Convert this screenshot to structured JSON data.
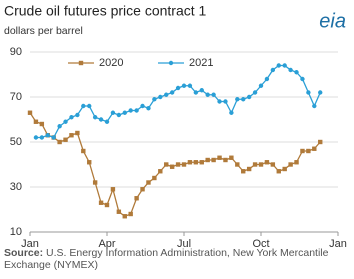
{
  "chart_data": {
    "type": "line",
    "title": "Crude oil futures price contract 1",
    "subtitle": "dollars per barrel",
    "logo": "eia",
    "source_label": "Source:",
    "source": "U.S. Energy Information Administration, New York Mercantile Exchange (NYMEX)",
    "x": [
      0,
      1,
      2,
      3,
      4,
      5,
      6,
      7,
      8,
      9,
      10,
      11,
      12,
      13,
      14,
      15,
      16,
      17,
      18,
      19,
      20,
      21,
      22,
      23,
      24,
      25,
      26,
      27,
      28,
      29,
      30,
      31,
      32,
      33,
      34,
      35,
      36,
      37,
      38,
      39,
      40,
      41,
      42,
      43,
      44,
      45,
      46,
      47,
      48,
      49
    ],
    "xlim": [
      0,
      52
    ],
    "xticks": [
      {
        "value": 0,
        "label": "Jan"
      },
      {
        "value": 13,
        "label": "Apr"
      },
      {
        "value": 26,
        "label": "Jul"
      },
      {
        "value": 39,
        "label": "Oct"
      },
      {
        "value": 52,
        "label": "Jan"
      }
    ],
    "ylim": [
      10,
      90
    ],
    "yticks": [
      10,
      30,
      50,
      70,
      90
    ],
    "grid": true,
    "legend": "top",
    "series": [
      {
        "name": "2020",
        "color": "#b07a3a",
        "marker": "square",
        "values": [
          63,
          59,
          58,
          53,
          52,
          50,
          51,
          53,
          54,
          46,
          41,
          32,
          23,
          22,
          29,
          19,
          17,
          18,
          25,
          29,
          32,
          34,
          37,
          40,
          39,
          40,
          40,
          41,
          41,
          41,
          42,
          42,
          43,
          42,
          43,
          40,
          37,
          38,
          40,
          40,
          41,
          40,
          37,
          38,
          40,
          41,
          46,
          46,
          47,
          50
        ]
      },
      {
        "name": "2021",
        "color": "#2a9fd6",
        "marker": "circle",
        "values": [
          null,
          52,
          52,
          53,
          52,
          57,
          59,
          61,
          62,
          66,
          66,
          61,
          60,
          59,
          63,
          62,
          63,
          64,
          64,
          66,
          65,
          69,
          70,
          71,
          72,
          74,
          75,
          75,
          72,
          73,
          71,
          71,
          68,
          68,
          63,
          69,
          69,
          70,
          72,
          75,
          78,
          82,
          84,
          84,
          82,
          81,
          78,
          72,
          66,
          72
        ]
      }
    ]
  }
}
